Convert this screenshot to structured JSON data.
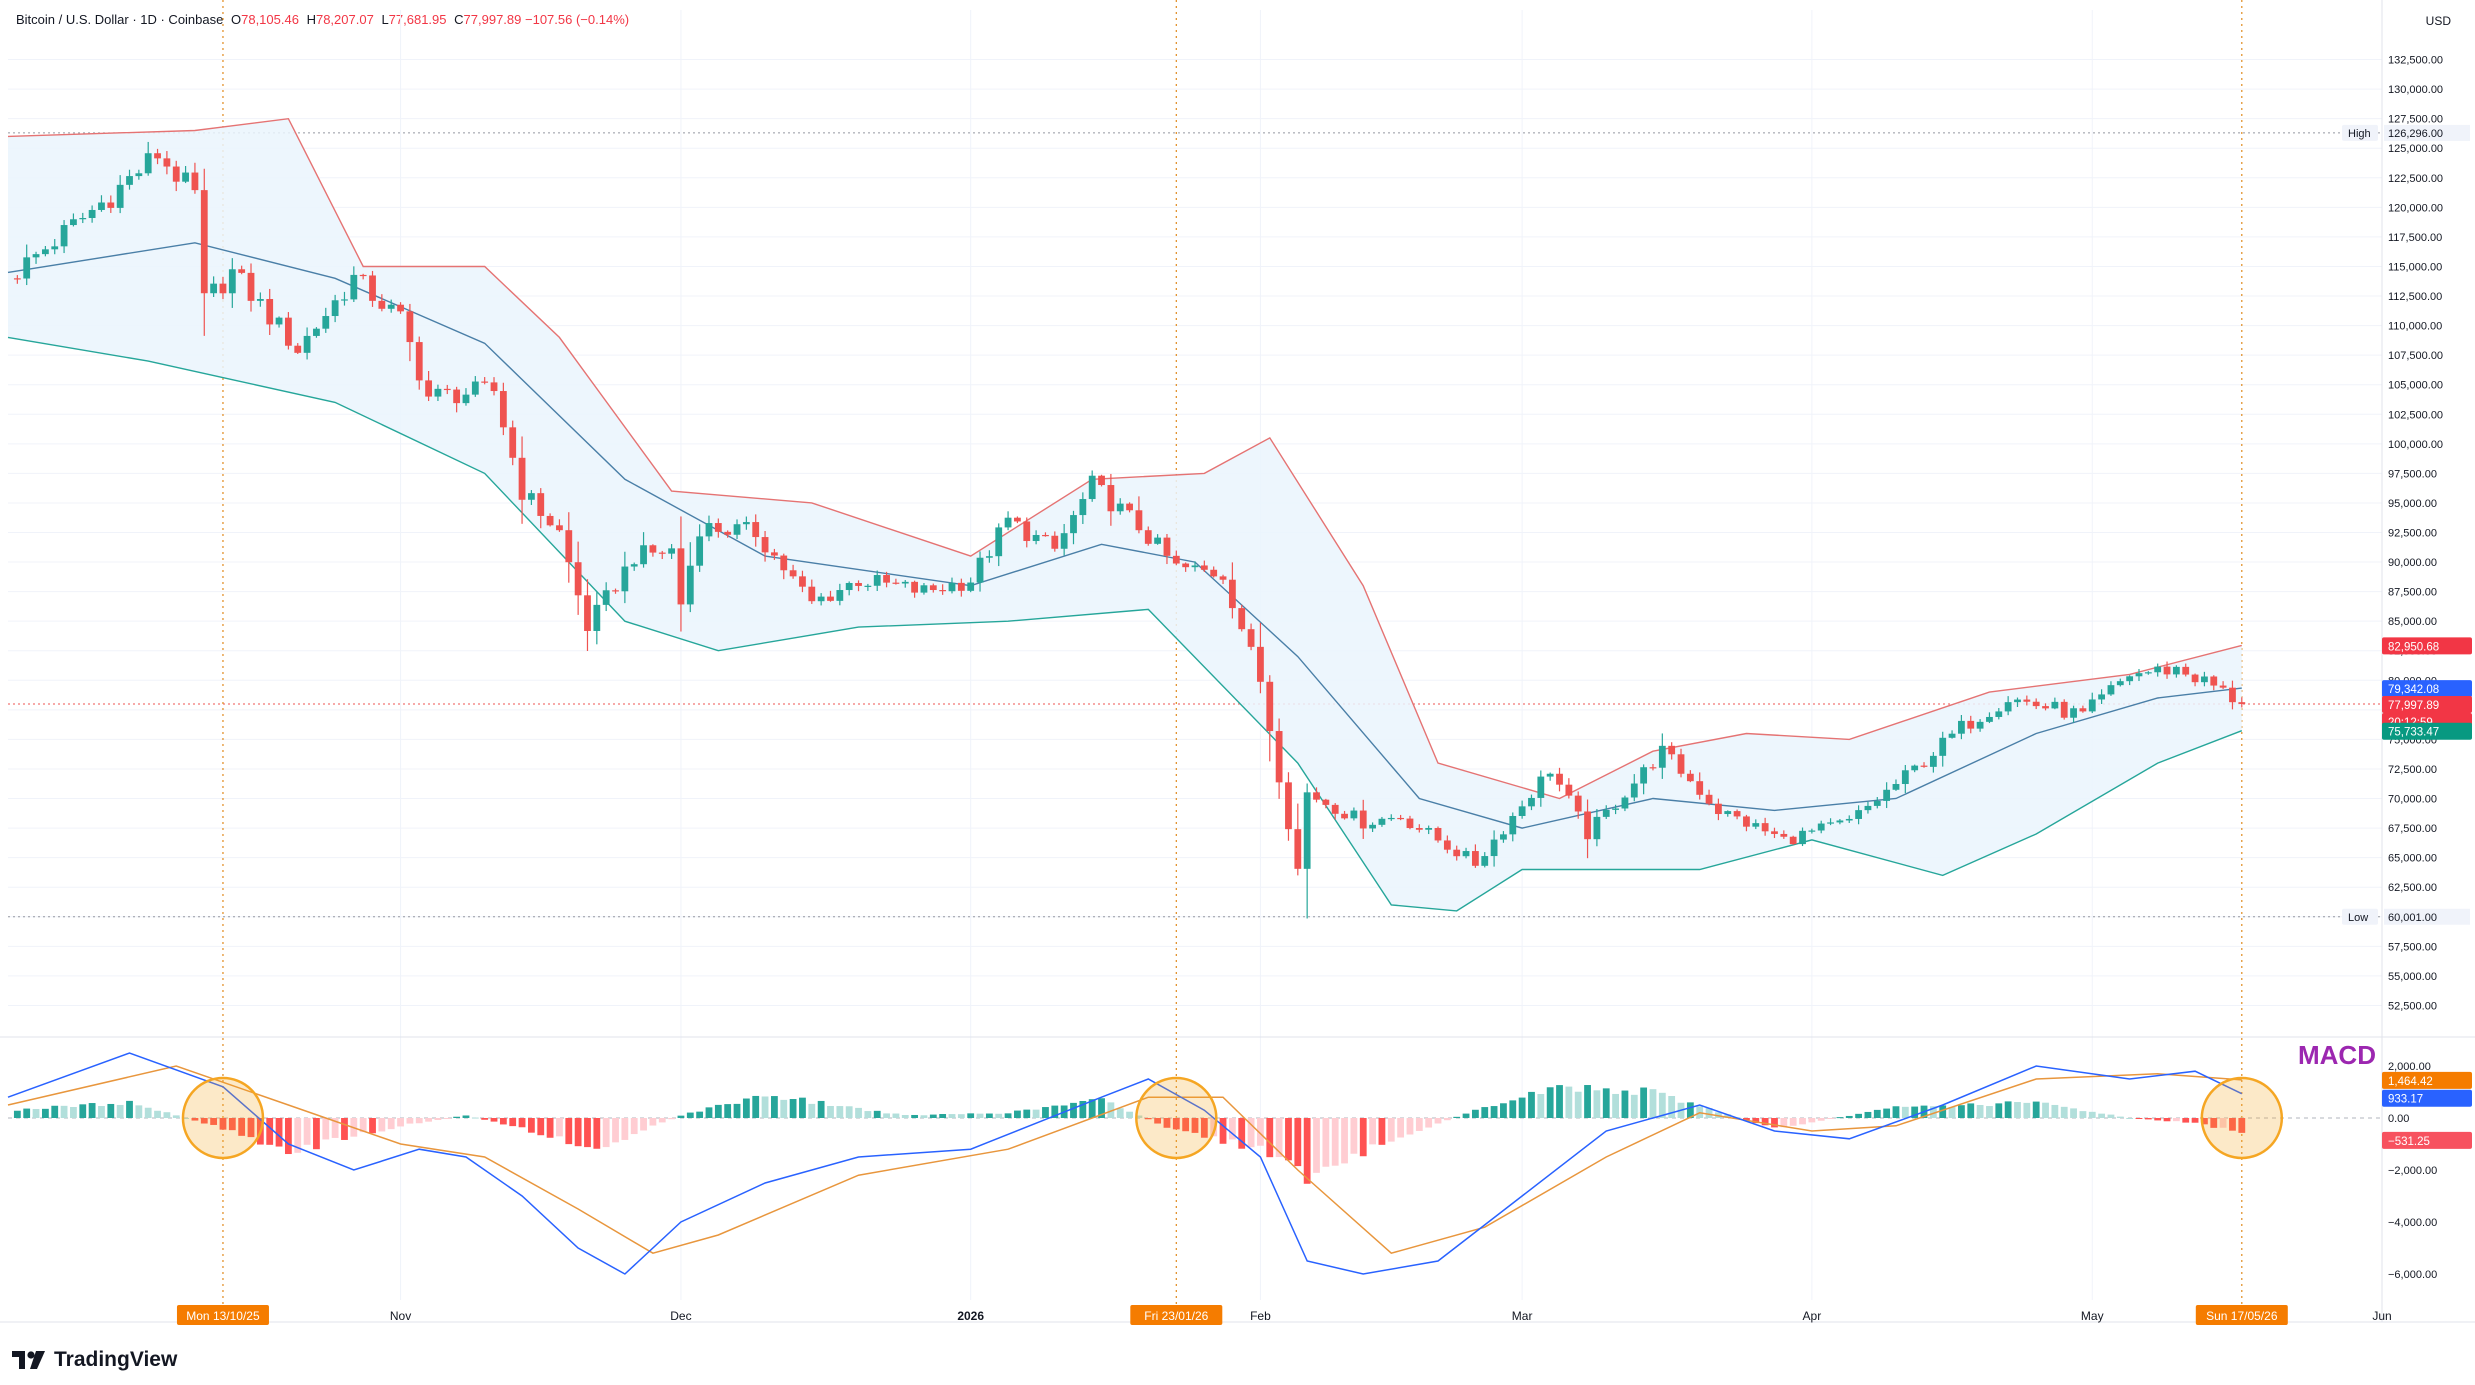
{
  "header": {
    "symbol": "Bitcoin / U.S. Dollar · 1D · Coinbase",
    "ohlc": [
      {
        "k": "O",
        "v": "78,105.46"
      },
      {
        "k": "H",
        "v": "78,207.07"
      },
      {
        "k": "L",
        "v": "77,681.95"
      },
      {
        "k": "C",
        "v": "77,997.89"
      },
      {
        "k": "",
        "v": "−107.56 (−0.14%)"
      }
    ],
    "currency": "USD"
  },
  "overlay": {
    "macd_text": "MACD"
  },
  "brand": {
    "logo_text": "TradingView"
  },
  "colors": {
    "up": "#26a69a",
    "down": "#ef5350",
    "bb_upper": "#e57373",
    "bb_basis": "#4a7fa7",
    "bb_lower": "#26a69a",
    "bb_fill": "#eaf4fd",
    "macd_line": "#2962ff",
    "signal_line": "#e8963d",
    "hist_up_strong": "#26a69a",
    "hist_up_weak": "#b2dfdb",
    "hist_down_strong": "#ff5252",
    "hist_down_weak": "#ffcdd2",
    "cross_marker": "#f5a623"
  },
  "chart_data": [
    {
      "type": "candlestick",
      "title": "Bitcoin / U.S. Dollar",
      "interval": "1D",
      "exchange": "Coinbase",
      "x_range": [
        "2025-09-20",
        "2026-06-01"
      ],
      "ylim": [
        50000,
        135000
      ],
      "y_ticks": [
        "52,500.00",
        "55,000.00",
        "57,500.00",
        "60,000.00",
        "62,500.00",
        "65,000.00",
        "67,500.00",
        "70,000.00",
        "72,500.00",
        "75,000.00",
        "77,500.00",
        "80,000.00",
        "82,500.00",
        "85,000.00",
        "87,500.00",
        "90,000.00",
        "92,500.00",
        "95,000.00",
        "97,500.00",
        "100,000.00",
        "102,500.00",
        "105,000.00",
        "107,500.00",
        "110,000.00",
        "112,500.00",
        "115,000.00",
        "117,500.00",
        "120,000.00",
        "122,500.00",
        "125,000.00",
        "127,500.00",
        "130,000.00",
        "132,500.00"
      ],
      "x_ticks": [
        {
          "date": "2025-11-01",
          "label": "Nov"
        },
        {
          "date": "2025-12-01",
          "label": "Dec"
        },
        {
          "date": "2026-01-01",
          "label": "2026"
        },
        {
          "date": "2026-02-01",
          "label": "Feb"
        },
        {
          "date": "2026-03-01",
          "label": "Mar"
        },
        {
          "date": "2026-04-01",
          "label": "Apr"
        },
        {
          "date": "2026-05-01",
          "label": "May"
        },
        {
          "date": "2026-06-01",
          "label": "Jun"
        }
      ],
      "date_markers": [
        {
          "date": "2025-10-13",
          "label": "Mon 13/10/25"
        },
        {
          "date": "2026-01-23",
          "label": "Fri 23/01/26"
        },
        {
          "date": "2026-05-17",
          "label": "Sun 17/05/26"
        }
      ],
      "high_line": {
        "label": "High",
        "value": 126296,
        "value_text": "126,296.00"
      },
      "low_line": {
        "label": "Low",
        "value": 60001,
        "value_text": "60,001.00"
      },
      "last_price": {
        "value": 77997.89,
        "value_text": "77,997.89",
        "countdown": "20:12:59"
      },
      "bollinger_labels": {
        "upper": {
          "value": 82950.68,
          "text": "82,950.68"
        },
        "basis": {
          "value": 79342.08,
          "text": "79,342.08"
        },
        "lower": {
          "value": 75733.47,
          "text": "75,733.47"
        }
      },
      "price_path": [
        {
          "date": "2025-09-20",
          "price": 114000
        },
        {
          "date": "2025-10-01",
          "price": 121000
        },
        {
          "date": "2025-10-06",
          "price": 124500
        },
        {
          "date": "2025-10-10",
          "price": 121000
        },
        {
          "date": "2025-10-11",
          "price": 112000
        },
        {
          "date": "2025-10-14",
          "price": 114500
        },
        {
          "date": "2025-10-21",
          "price": 108000
        },
        {
          "date": "2025-10-27",
          "price": 114000
        },
        {
          "date": "2025-11-01",
          "price": 110500
        },
        {
          "date": "2025-11-04",
          "price": 104000
        },
        {
          "date": "2025-11-11",
          "price": 104500
        },
        {
          "date": "2025-11-14",
          "price": 96000
        },
        {
          "date": "2025-11-18",
          "price": 92500
        },
        {
          "date": "2025-11-21",
          "price": 84500
        },
        {
          "date": "2025-11-26",
          "price": 90500
        },
        {
          "date": "2025-11-30",
          "price": 91000
        },
        {
          "date": "2025-12-01",
          "price": 86500
        },
        {
          "date": "2025-12-03",
          "price": 93000
        },
        {
          "date": "2025-12-09",
          "price": 92500
        },
        {
          "date": "2025-12-15",
          "price": 86500
        },
        {
          "date": "2025-12-20",
          "price": 88500
        },
        {
          "date": "2025-12-27",
          "price": 87500
        },
        {
          "date": "2026-01-01",
          "price": 88500
        },
        {
          "date": "2026-01-05",
          "price": 93500
        },
        {
          "date": "2026-01-10",
          "price": 91000
        },
        {
          "date": "2026-01-14",
          "price": 96500
        },
        {
          "date": "2026-01-19",
          "price": 93000
        },
        {
          "date": "2026-01-23",
          "price": 89500
        },
        {
          "date": "2026-01-28",
          "price": 89000
        },
        {
          "date": "2026-02-01",
          "price": 80000
        },
        {
          "date": "2026-02-05",
          "price": 64000
        },
        {
          "date": "2026-02-06",
          "price": 70500
        },
        {
          "date": "2026-02-12",
          "price": 68000
        },
        {
          "date": "2026-02-16",
          "price": 68500
        },
        {
          "date": "2026-02-24",
          "price": 64500
        },
        {
          "date": "2026-03-04",
          "price": 72500
        },
        {
          "date": "2026-03-08",
          "price": 67000
        },
        {
          "date": "2026-03-16",
          "price": 74000
        },
        {
          "date": "2026-03-22",
          "price": 69000
        },
        {
          "date": "2026-03-29",
          "price": 66500
        },
        {
          "date": "2026-04-05",
          "price": 68000
        },
        {
          "date": "2026-04-12",
          "price": 72500
        },
        {
          "date": "2026-04-17",
          "price": 76000
        },
        {
          "date": "2026-04-22",
          "price": 78500
        },
        {
          "date": "2026-04-30",
          "price": 77000
        },
        {
          "date": "2026-05-05",
          "price": 80500
        },
        {
          "date": "2026-05-10",
          "price": 81000
        },
        {
          "date": "2026-05-14",
          "price": 79500
        },
        {
          "date": "2026-05-17",
          "price": 77998
        }
      ],
      "bollinger_upper": [
        {
          "date": "2025-09-20",
          "price": 126000
        },
        {
          "date": "2025-10-10",
          "price": 126500
        },
        {
          "date": "2025-10-20",
          "price": 127500
        },
        {
          "date": "2025-10-28",
          "price": 115000
        },
        {
          "date": "2025-11-10",
          "price": 115000
        },
        {
          "date": "2025-11-18",
          "price": 109000
        },
        {
          "date": "2025-11-30",
          "price": 96000
        },
        {
          "date": "2025-12-15",
          "price": 95000
        },
        {
          "date": "2026-01-01",
          "price": 90500
        },
        {
          "date": "2026-01-14",
          "price": 97000
        },
        {
          "date": "2026-01-26",
          "price": 97500
        },
        {
          "date": "2026-02-02",
          "price": 100500
        },
        {
          "date": "2026-02-12",
          "price": 88000
        },
        {
          "date": "2026-02-20",
          "price": 73000
        },
        {
          "date": "2026-03-05",
          "price": 70000
        },
        {
          "date": "2026-03-15",
          "price": 74000
        },
        {
          "date": "2026-03-25",
          "price": 75500
        },
        {
          "date": "2026-04-05",
          "price": 75000
        },
        {
          "date": "2026-04-20",
          "price": 79000
        },
        {
          "date": "2026-05-05",
          "price": 80500
        },
        {
          "date": "2026-05-17",
          "price": 82950.68
        }
      ],
      "bollinger_basis": [
        {
          "date": "2025-09-20",
          "price": 114500
        },
        {
          "date": "2025-10-10",
          "price": 117000
        },
        {
          "date": "2025-10-25",
          "price": 114000
        },
        {
          "date": "2025-11-10",
          "price": 108500
        },
        {
          "date": "2025-11-25",
          "price": 97000
        },
        {
          "date": "2025-12-10",
          "price": 90500
        },
        {
          "date": "2026-01-01",
          "price": 88000
        },
        {
          "date": "2026-01-15",
          "price": 91500
        },
        {
          "date": "2026-01-25",
          "price": 90000
        },
        {
          "date": "2026-02-05",
          "price": 82000
        },
        {
          "date": "2026-02-18",
          "price": 70000
        },
        {
          "date": "2026-03-01",
          "price": 67500
        },
        {
          "date": "2026-03-15",
          "price": 70000
        },
        {
          "date": "2026-03-28",
          "price": 69000
        },
        {
          "date": "2026-04-10",
          "price": 70000
        },
        {
          "date": "2026-04-25",
          "price": 75500
        },
        {
          "date": "2026-05-08",
          "price": 78500
        },
        {
          "date": "2026-05-17",
          "price": 79342.08
        }
      ],
      "bollinger_lower": [
        {
          "date": "2025-09-20",
          "price": 109000
        },
        {
          "date": "2025-10-05",
          "price": 107000
        },
        {
          "date": "2025-10-25",
          "price": 103500
        },
        {
          "date": "2025-11-10",
          "price": 97500
        },
        {
          "date": "2025-11-25",
          "price": 85000
        },
        {
          "date": "2025-12-05",
          "price": 82500
        },
        {
          "date": "2025-12-20",
          "price": 84500
        },
        {
          "date": "2026-01-05",
          "price": 85000
        },
        {
          "date": "2026-01-20",
          "price": 86000
        },
        {
          "date": "2026-02-05",
          "price": 73000
        },
        {
          "date": "2026-02-15",
          "price": 61000
        },
        {
          "date": "2026-02-22",
          "price": 60500
        },
        {
          "date": "2026-03-01",
          "price": 64000
        },
        {
          "date": "2026-03-20",
          "price": 64000
        },
        {
          "date": "2026-04-01",
          "price": 66500
        },
        {
          "date": "2026-04-15",
          "price": 63500
        },
        {
          "date": "2026-04-25",
          "price": 67000
        },
        {
          "date": "2026-05-08",
          "price": 73000
        },
        {
          "date": "2026-05-17",
          "price": 75733.47
        }
      ]
    },
    {
      "type": "macd",
      "title": "MACD",
      "ylim": [
        -7000,
        3000
      ],
      "y_ticks": [
        "−6,000.00",
        "−4,000.00",
        "−2,000.00",
        "0.00",
        "2,000.00"
      ],
      "labels": {
        "signal": {
          "value": 1464.42,
          "text": "1,464.42"
        },
        "macd": {
          "value": 933.17,
          "text": "933.17"
        },
        "zero": {
          "value": 0,
          "text": "0.00"
        },
        "histogram": {
          "value": -531.25,
          "text": "−531.25"
        }
      },
      "macd_line": [
        {
          "date": "2025-09-20",
          "macd": 800
        },
        {
          "date": "2025-10-03",
          "macd": 2500
        },
        {
          "date": "2025-10-13",
          "macd": 1200
        },
        {
          "date": "2025-10-20",
          "macd": -1000
        },
        {
          "date": "2025-10-27",
          "macd": -2000
        },
        {
          "date": "2025-11-03",
          "macd": -1200
        },
        {
          "date": "2025-11-08",
          "macd": -1500
        },
        {
          "date": "2025-11-14",
          "macd": -3000
        },
        {
          "date": "2025-11-20",
          "macd": -5000
        },
        {
          "date": "2025-11-25",
          "macd": -6000
        },
        {
          "date": "2025-12-01",
          "macd": -4000
        },
        {
          "date": "2025-12-10",
          "macd": -2500
        },
        {
          "date": "2025-12-20",
          "macd": -1500
        },
        {
          "date": "2026-01-01",
          "macd": -1200
        },
        {
          "date": "2026-01-15",
          "macd": 800
        },
        {
          "date": "2026-01-20",
          "macd": 1500
        },
        {
          "date": "2026-01-26",
          "macd": 300
        },
        {
          "date": "2026-02-01",
          "macd": -1500
        },
        {
          "date": "2026-02-06",
          "macd": -5500
        },
        {
          "date": "2026-02-12",
          "macd": -6000
        },
        {
          "date": "2026-02-20",
          "macd": -5500
        },
        {
          "date": "2026-03-01",
          "macd": -3000
        },
        {
          "date": "2026-03-10",
          "macd": -500
        },
        {
          "date": "2026-03-20",
          "macd": 500
        },
        {
          "date": "2026-03-28",
          "macd": -500
        },
        {
          "date": "2026-04-05",
          "macd": -800
        },
        {
          "date": "2026-04-15",
          "macd": 500
        },
        {
          "date": "2026-04-25",
          "macd": 2000
        },
        {
          "date": "2026-05-05",
          "macd": 1500
        },
        {
          "date": "2026-05-12",
          "macd": 1800
        },
        {
          "date": "2026-05-17",
          "macd": 933.17
        }
      ],
      "signal_line": [
        {
          "date": "2025-09-20",
          "signal": 500
        },
        {
          "date": "2025-10-08",
          "signal": 2000
        },
        {
          "date": "2025-10-20",
          "signal": 500
        },
        {
          "date": "2025-11-01",
          "signal": -1000
        },
        {
          "date": "2025-11-10",
          "signal": -1500
        },
        {
          "date": "2025-11-20",
          "signal": -3500
        },
        {
          "date": "2025-11-28",
          "signal": -5200
        },
        {
          "date": "2025-12-05",
          "signal": -4500
        },
        {
          "date": "2025-12-20",
          "signal": -2200
        },
        {
          "date": "2026-01-05",
          "signal": -1200
        },
        {
          "date": "2026-01-20",
          "signal": 800
        },
        {
          "date": "2026-01-28",
          "signal": 800
        },
        {
          "date": "2026-02-05",
          "signal": -2000
        },
        {
          "date": "2026-02-15",
          "signal": -5200
        },
        {
          "date": "2026-02-25",
          "signal": -4200
        },
        {
          "date": "2026-03-10",
          "signal": -1500
        },
        {
          "date": "2026-03-20",
          "signal": 200
        },
        {
          "date": "2026-04-01",
          "signal": -500
        },
        {
          "date": "2026-04-10",
          "signal": -300
        },
        {
          "date": "2026-04-25",
          "signal": 1500
        },
        {
          "date": "2026-05-08",
          "signal": 1700
        },
        {
          "date": "2026-05-17",
          "signal": 1464.42
        }
      ],
      "histogram_envelope": [
        {
          "date": "2025-09-20",
          "hist": 300
        },
        {
          "date": "2025-10-03",
          "hist": 600
        },
        {
          "date": "2025-10-13",
          "hist": -400
        },
        {
          "date": "2025-10-20",
          "hist": -1300
        },
        {
          "date": "2025-11-01",
          "hist": -300
        },
        {
          "date": "2025-11-08",
          "hist": 100
        },
        {
          "date": "2025-11-14",
          "hist": -400
        },
        {
          "date": "2025-11-22",
          "hist": -1200
        },
        {
          "date": "2025-12-01",
          "hist": 100
        },
        {
          "date": "2025-12-10",
          "hist": 900
        },
        {
          "date": "2025-12-25",
          "hist": 100
        },
        {
          "date": "2026-01-05",
          "hist": 200
        },
        {
          "date": "2026-01-15",
          "hist": 700
        },
        {
          "date": "2026-01-23",
          "hist": -500
        },
        {
          "date": "2026-02-01",
          "hist": -1200
        },
        {
          "date": "2026-02-06",
          "hist": -2300
        },
        {
          "date": "2026-02-15",
          "hist": -800
        },
        {
          "date": "2026-02-25",
          "hist": 400
        },
        {
          "date": "2026-03-05",
          "hist": 1200
        },
        {
          "date": "2026-03-15",
          "hist": 1000
        },
        {
          "date": "2026-03-28",
          "hist": -400
        },
        {
          "date": "2026-04-10",
          "hist": 400
        },
        {
          "date": "2026-04-25",
          "hist": 600
        },
        {
          "date": "2026-05-05",
          "hist": 0
        },
        {
          "date": "2026-05-12",
          "hist": -200
        },
        {
          "date": "2026-05-17",
          "hist": -531.25
        }
      ],
      "cross_markers": [
        "2025-10-13",
        "2026-01-23",
        "2026-05-17"
      ]
    }
  ]
}
